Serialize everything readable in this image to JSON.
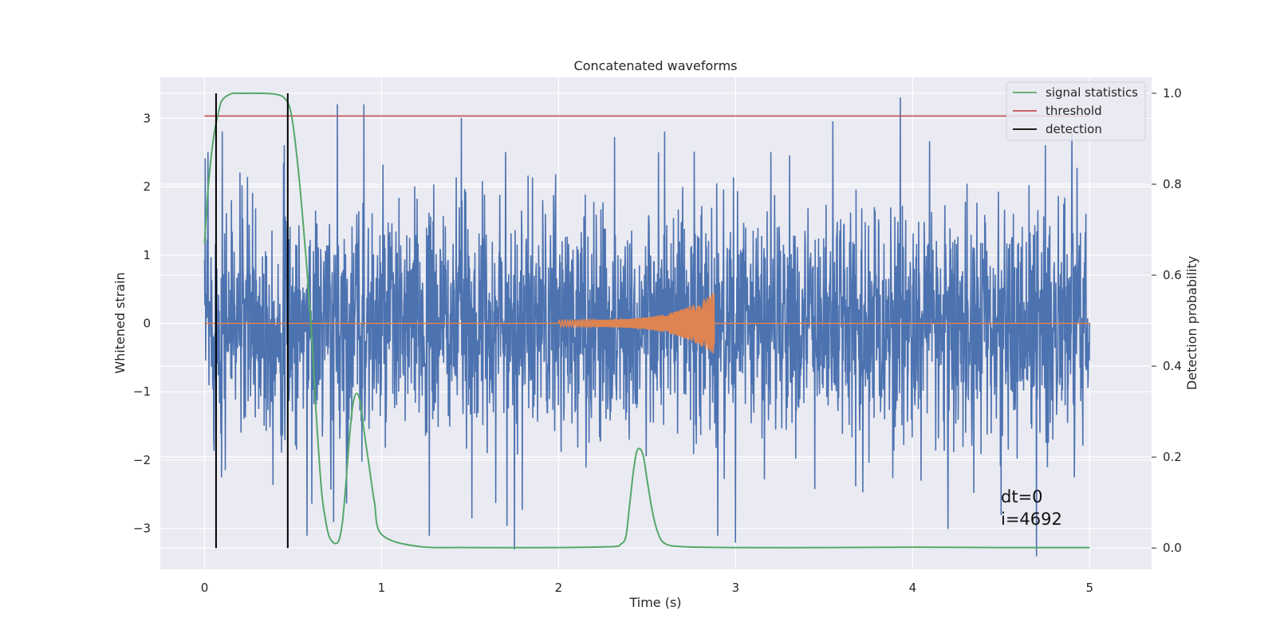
{
  "chart_data": {
    "type": "line",
    "title": "Concatenated waveforms",
    "xlabel": "Time (s)",
    "ylabel": "Whitened strain",
    "y2label": "Detection probability",
    "xlim": [
      -0.25,
      5.35
    ],
    "ylim": [
      -3.6,
      3.6
    ],
    "y2lim": [
      -0.047,
      1.035
    ],
    "xticks": [
      0,
      1,
      2,
      3,
      4,
      5
    ],
    "yticks": [
      -3,
      -2,
      -1,
      0,
      1,
      2,
      3
    ],
    "y2ticks": [
      "0.0",
      "0.2",
      "0.4",
      "0.6",
      "0.8",
      "1.0"
    ],
    "grid": true,
    "legend_position": "top-right",
    "legend": [
      "signal statistics",
      "threshold",
      "detection"
    ],
    "colors": {
      "strain": "#4c72b0",
      "waveform": "#dd8452",
      "signal_statistics": "#55a868",
      "threshold": "#c44e52",
      "detection": "#000000",
      "plot_bg": "#eaeaf2",
      "grid": "#ffffff"
    },
    "series": [
      {
        "id": "strain",
        "description_axis": "left",
        "x_range": [
          0,
          5
        ],
        "noise_std": 0.85,
        "spikes": [
          [
            0.02,
            2.5
          ],
          [
            0.1,
            2.8
          ],
          [
            0.2,
            2.2
          ],
          [
            0.45,
            2.6
          ],
          [
            0.75,
            3.2
          ],
          [
            0.9,
            3.2
          ],
          [
            1.45,
            3.0
          ],
          [
            1.7,
            2.5
          ],
          [
            2.6,
            2.8
          ],
          [
            3.2,
            2.5
          ],
          [
            3.55,
            2.95
          ],
          [
            3.93,
            3.3
          ],
          [
            4.75,
            2.6
          ],
          [
            4.9,
            2.8
          ],
          [
            0.58,
            -3.1
          ],
          [
            0.73,
            -2.9
          ],
          [
            1.27,
            -3.1
          ],
          [
            1.75,
            -3.3
          ],
          [
            2.9,
            -3.1
          ],
          [
            3.0,
            -3.2
          ],
          [
            4.2,
            -3.0
          ],
          [
            4.7,
            -3.4
          ],
          [
            4.5,
            -2.8
          ]
        ]
      },
      {
        "id": "waveform",
        "description_axis": "left",
        "chirp_start": 2.0,
        "chirp_end": 2.88,
        "amplitude_start": 0.05,
        "amplitude_peak": 0.45
      },
      {
        "name": "signal statistics",
        "axis": "right",
        "x": [
          0,
          0.02,
          0.05,
          0.08,
          0.1,
          0.15,
          0.2,
          0.3,
          0.4,
          0.45,
          0.48,
          0.5,
          0.53,
          0.56,
          0.6,
          0.63,
          0.66,
          0.68,
          0.7,
          0.72,
          0.74,
          0.76,
          0.78,
          0.8,
          0.82,
          0.84,
          0.86,
          0.88,
          0.9,
          0.93,
          0.96,
          1.0,
          1.2,
          1.5,
          2.0,
          2.3,
          2.35,
          2.38,
          2.4,
          2.42,
          2.44,
          2.46,
          2.48,
          2.5,
          2.53,
          2.56,
          2.6,
          2.7,
          3.0,
          3.5,
          4.0,
          4.5,
          5.0
        ],
        "y": [
          0.67,
          0.79,
          0.9,
          0.96,
          0.985,
          0.999,
          1.0,
          1.0,
          0.998,
          0.99,
          0.97,
          0.93,
          0.83,
          0.7,
          0.5,
          0.3,
          0.13,
          0.07,
          0.03,
          0.015,
          0.01,
          0.018,
          0.06,
          0.15,
          0.25,
          0.32,
          0.34,
          0.32,
          0.26,
          0.18,
          0.1,
          0.03,
          0.004,
          0.001,
          0.001,
          0.003,
          0.008,
          0.025,
          0.09,
          0.16,
          0.21,
          0.218,
          0.2,
          0.15,
          0.08,
          0.035,
          0.01,
          0.003,
          0.001,
          0.001,
          0.002,
          0.001,
          0.001
        ]
      },
      {
        "name": "threshold",
        "axis": "right",
        "x": [
          0,
          5
        ],
        "y": [
          0.95,
          0.95
        ]
      },
      {
        "name": "detection",
        "axis": "right",
        "x": [
          0.065,
          0.47
        ],
        "ymin": 0.0,
        "ymax": 1.0
      }
    ],
    "annotations": [
      "dt=0",
      "i=4692"
    ]
  }
}
